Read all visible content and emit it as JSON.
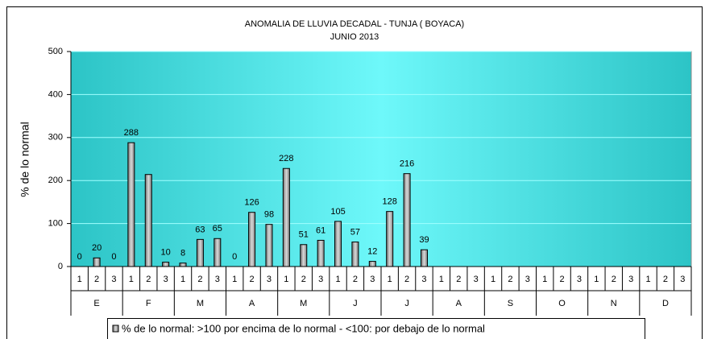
{
  "chart_data": {
    "type": "bar",
    "title": "ANOMALIA DE LLUVIA DECADAL - TUNJA ( BOYACA)",
    "subtitle": "JUNIO 2013",
    "y_label": "% de lo normal",
    "categories": [
      "1",
      "2",
      "3",
      "1",
      "2",
      "3",
      "1",
      "2",
      "3",
      "1",
      "2",
      "3",
      "1",
      "2",
      "3",
      "1",
      "2",
      "3",
      "1",
      "2",
      "3",
      "1",
      "2",
      "3",
      "1",
      "2",
      "3",
      "1",
      "2",
      "3",
      "1",
      "2",
      "3",
      "1",
      "2",
      "3"
    ],
    "groups": [
      "E",
      "F",
      "M",
      "A",
      "M",
      "J",
      "J",
      "A",
      "S",
      "O",
      "N",
      "D"
    ],
    "series": [
      {
        "name": "% de lo normal: >100 por encima de lo normal - <100: por debajo de lo normal",
        "color": "#a8a8a8",
        "values": [
          0,
          20,
          0,
          288,
          214,
          10,
          8,
          63,
          65,
          0,
          126,
          98,
          228,
          51,
          61,
          105,
          57,
          12,
          128,
          216,
          39,
          null,
          null,
          null,
          null,
          null,
          null,
          null,
          null,
          null,
          null,
          null,
          null,
          null,
          null,
          null
        ],
        "value_labels": [
          "0",
          "20",
          "0",
          "288",
          null,
          "10",
          "8",
          "63",
          "65",
          "0",
          "126",
          "98",
          "228",
          "51",
          "61",
          "105",
          "57",
          "12",
          "128",
          "216",
          "39",
          null,
          null,
          null,
          null,
          null,
          null,
          null,
          null,
          null,
          null,
          null,
          null,
          null,
          null,
          null
        ]
      }
    ],
    "ylim": [
      0,
      500
    ],
    "yticks": [
      0,
      100,
      200,
      300,
      400,
      500
    ],
    "grid": true,
    "legend": "bottom"
  }
}
